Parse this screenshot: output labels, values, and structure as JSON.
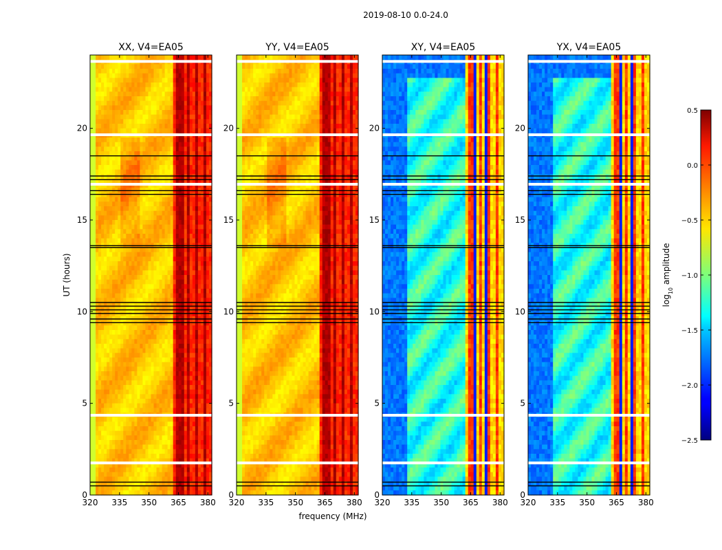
{
  "chart_data": {
    "type": "heatmap",
    "suptitle": "2019-08-10 0.0-24.0",
    "xlabel": "frequency (MHz)",
    "ylabel": "UT (hours)",
    "xlim": [
      320,
      382
    ],
    "ylim": [
      0,
      24
    ],
    "xticks": [
      "320",
      "335",
      "350",
      "365",
      "380"
    ],
    "yticks": [
      "0",
      "5",
      "10",
      "15",
      "20"
    ],
    "colormap": "jet",
    "colorbar": {
      "label_prefix": "log",
      "label_sub": "10",
      "label_suffix": " amplitude",
      "range": [
        -2.5,
        0.5
      ],
      "ticks": [
        "0.5",
        "0.0",
        "−0.5",
        "−1.0",
        "−1.5",
        "−2.0",
        "−2.5"
      ],
      "tick_values": [
        0.5,
        0.0,
        -0.5,
        -1.0,
        -1.5,
        -2.0,
        -2.5
      ]
    },
    "panels": [
      {
        "title": "XX, V4=EA05",
        "kind": "auto"
      },
      {
        "title": "YY, V4=EA05",
        "kind": "auto"
      },
      {
        "title": "XY, V4=EA05",
        "kind": "cross"
      },
      {
        "title": "YX, V4=EA05",
        "kind": "cross"
      }
    ],
    "bright_rfi_bands_mhz": [
      [
        364,
        366
      ],
      [
        367,
        368
      ],
      [
        369.5,
        370.5
      ],
      [
        373.5,
        374.5
      ],
      [
        378,
        379
      ]
    ],
    "data_gaps_white_ut": [
      1.75,
      4.35,
      16.95,
      19.65,
      23.65
    ],
    "flagged_rows_black_ut": [
      0.5,
      0.7,
      9.4,
      9.6,
      9.9,
      10.1,
      10.3,
      10.5,
      13.5,
      13.6,
      16.4,
      16.6,
      17.2,
      17.4,
      18.5
    ]
  }
}
